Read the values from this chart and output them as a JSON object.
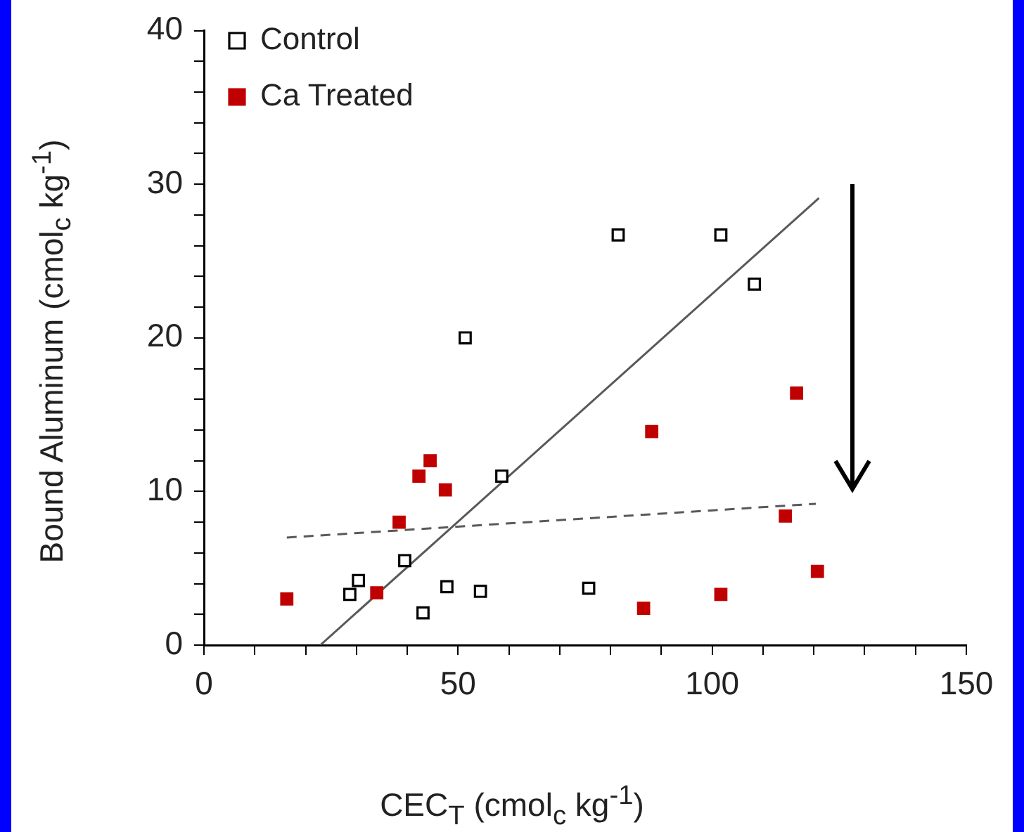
{
  "chart_data": {
    "type": "scatter",
    "xlabel": "CEC$_{T}$ (cmol$_{c}$ kg$^{-1}$)",
    "ylabel": "Bound Aluminum (cmol$_{c}$ kg$^{-1}$)",
    "xlim": [
      0,
      150
    ],
    "ylim": [
      0,
      40
    ],
    "xticks": [
      0,
      {
        "value": 10,
        "label": null
      },
      {
        "value": 20,
        "label": null
      },
      {
        "value": 30,
        "label": null
      },
      {
        "value": 40,
        "label": null
      },
      50,
      {
        "value": 60,
        "label": null
      },
      {
        "value": 70,
        "label": null
      },
      {
        "value": 80,
        "label": null
      },
      {
        "value": 90,
        "label": null
      },
      100,
      {
        "value": 110,
        "label": null
      },
      {
        "value": 120,
        "label": null
      },
      {
        "value": 130,
        "label": null
      },
      {
        "value": 140,
        "label": null
      },
      150
    ],
    "yticks": [
      0,
      {
        "value": 2,
        "label": null
      },
      {
        "value": 4,
        "label": null
      },
      {
        "value": 6,
        "label": null
      },
      {
        "value": 8,
        "label": null
      },
      10,
      {
        "value": 12,
        "label": null
      },
      {
        "value": 14,
        "label": null
      },
      {
        "value": 16,
        "label": null
      },
      {
        "value": 18,
        "label": null
      },
      20,
      {
        "value": 22,
        "label": null
      },
      {
        "value": 24,
        "label": null
      },
      {
        "value": 26,
        "label": null
      },
      {
        "value": 28,
        "label": null
      },
      30,
      {
        "value": 32,
        "label": null
      },
      {
        "value": 34,
        "label": null
      },
      {
        "value": 36,
        "label": null
      },
      {
        "value": 38,
        "label": null
      },
      40
    ],
    "grid": false,
    "legend": "top left",
    "marker": "square",
    "series": [
      {
        "name": "Control",
        "color": "#000000",
        "x": [
          28.7,
          30.4,
          39.5,
          43.1,
          47.8,
          51.4,
          54.4,
          58.6,
          75.7,
          81.5,
          101.7,
          108.3
        ],
        "values": [
          3.3,
          4.2,
          5.5,
          2.1,
          3.8,
          20,
          3.5,
          11,
          3.7,
          26.7,
          26.7,
          23.5
        ]
      },
      {
        "name": "Ca Treated",
        "color": "#c00000",
        "x": [
          16.3,
          34,
          38.4,
          42.3,
          44.5,
          47.5,
          86.5,
          88.1,
          101.7,
          114.4,
          116.6,
          120.7
        ],
        "values": [
          3,
          3.4,
          8,
          11,
          12,
          10.1,
          2.4,
          13.9,
          3.3,
          8.4,
          16.4,
          4.8
        ]
      },
      {
        "type": "line",
        "color": "#595959",
        "marker": "none",
        "line_style": "solid",
        "x": [
          22.9,
          121
        ],
        "values": [
          0,
          29.1
        ]
      },
      {
        "type": "line",
        "color": "#595959",
        "marker": "none",
        "line_style": "dashed",
        "x": [
          16.3,
          120.4
        ],
        "values": [
          7,
          9.2
        ]
      }
    ]
  }
}
